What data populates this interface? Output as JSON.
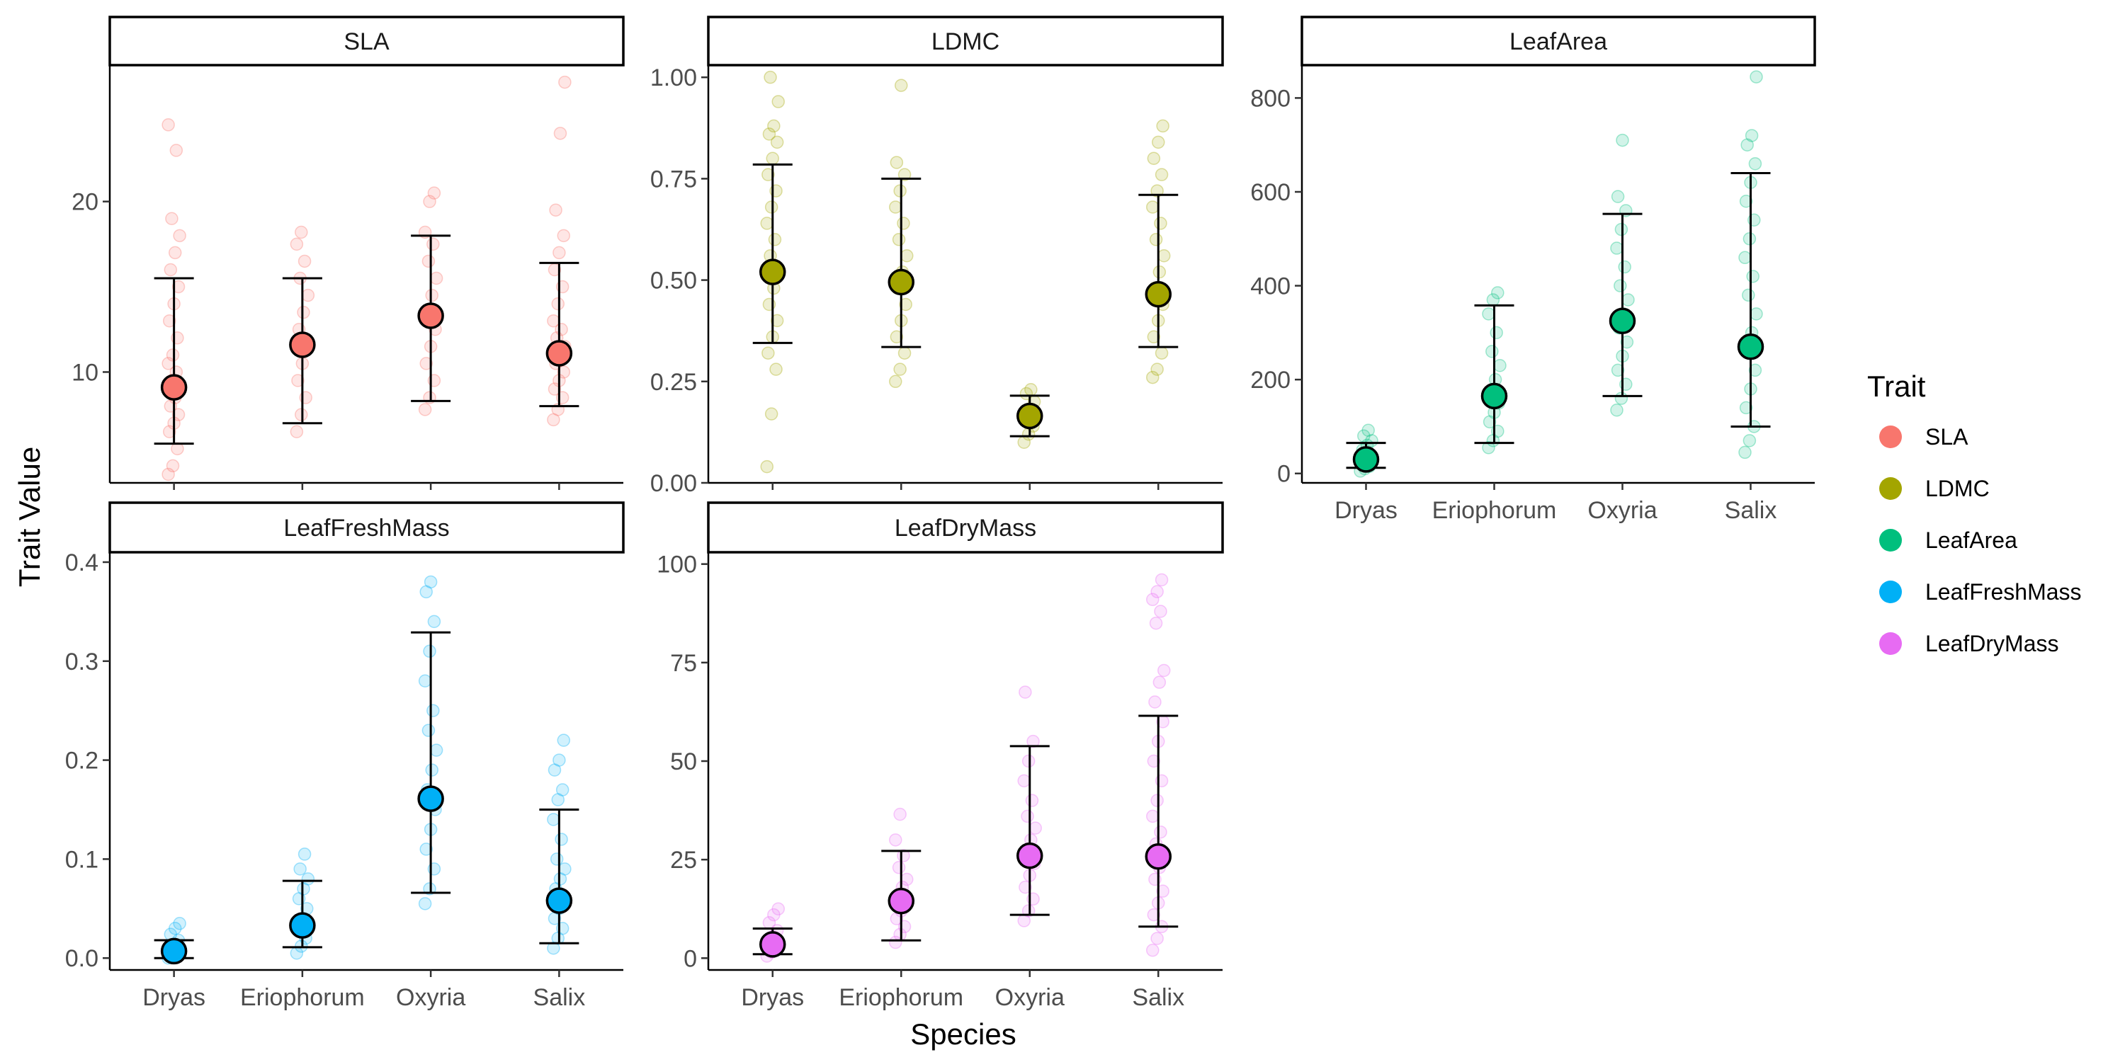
{
  "chart_data": {
    "type": "scatter",
    "xlabel": "Species",
    "ylabel": "Trait Value",
    "categories": [
      "Dryas",
      "Eriophorum",
      "Oxyria",
      "Salix"
    ],
    "grid": false,
    "legend": {
      "title": "Trait",
      "placement": "right",
      "entries": [
        {
          "name": "SLA",
          "color": "#F8766D"
        },
        {
          "name": "LDMC",
          "color": "#A3A500"
        },
        {
          "name": "LeafArea",
          "color": "#00BF7D"
        },
        {
          "name": "LeafFreshMass",
          "color": "#00B0F6"
        },
        {
          "name": "LeafDryMass",
          "color": "#E76BF3"
        }
      ]
    },
    "panels": [
      {
        "name": "SLA",
        "color": "#F8766D",
        "ylim": [
          3.5,
          28
        ],
        "yticks": [
          10,
          20
        ],
        "ytick_labels": [
          "10",
          "20"
        ],
        "mean": [
          9.1,
          11.6,
          13.3,
          11.1
        ],
        "lower": [
          5.8,
          7.0,
          8.3,
          8.0
        ],
        "upper": [
          15.5,
          15.5,
          18.0,
          16.4
        ],
        "points": [
          [
            4.0,
            4.5,
            5.5,
            6.5,
            7.0,
            7.5,
            8.0,
            8.5,
            9.0,
            9.5,
            10.0,
            10.5,
            11.0,
            12.0,
            13.0,
            14.0,
            15.0,
            16.0,
            17.0,
            18.0,
            19.0,
            23.0,
            24.5
          ],
          [
            6.5,
            7.5,
            8.5,
            9.5,
            10.5,
            11.5,
            12.5,
            13.5,
            14.5,
            15.5,
            16.5,
            17.5,
            18.2
          ],
          [
            7.8,
            8.5,
            9.5,
            10.5,
            11.5,
            12.5,
            13.5,
            14.5,
            15.5,
            16.5,
            17.5,
            18.2,
            20.0,
            20.5
          ],
          [
            7.2,
            7.8,
            8.5,
            9.0,
            9.5,
            10.0,
            10.5,
            11.0,
            11.5,
            12.0,
            12.5,
            13.0,
            14.0,
            15.0,
            16.0,
            17.0,
            18.0,
            19.5,
            24.0,
            27.0
          ]
        ]
      },
      {
        "name": "LDMC",
        "color": "#A3A500",
        "ylim": [
          0,
          1.03
        ],
        "yticks": [
          0,
          0.25,
          0.5,
          0.75,
          1.0
        ],
        "ytick_labels": [
          "0.00",
          "0.25",
          "0.50",
          "0.75",
          "1.00"
        ],
        "mean": [
          0.52,
          0.495,
          0.165,
          0.465
        ],
        "lower": [
          0.345,
          0.335,
          0.115,
          0.335
        ],
        "upper": [
          0.785,
          0.75,
          0.215,
          0.71
        ],
        "points": [
          [
            0.04,
            0.17,
            0.28,
            0.32,
            0.36,
            0.4,
            0.44,
            0.48,
            0.52,
            0.56,
            0.6,
            0.64,
            0.68,
            0.72,
            0.76,
            0.8,
            0.84,
            0.86,
            0.88,
            0.94,
            1.0
          ],
          [
            0.25,
            0.28,
            0.32,
            0.36,
            0.4,
            0.44,
            0.48,
            0.52,
            0.56,
            0.6,
            0.64,
            0.68,
            0.72,
            0.76,
            0.79,
            0.98
          ],
          [
            0.1,
            0.12,
            0.14,
            0.16,
            0.18,
            0.2,
            0.22,
            0.23
          ],
          [
            0.26,
            0.28,
            0.32,
            0.36,
            0.4,
            0.44,
            0.48,
            0.52,
            0.56,
            0.6,
            0.64,
            0.68,
            0.72,
            0.76,
            0.8,
            0.84,
            0.88
          ]
        ]
      },
      {
        "name": "LeafArea",
        "color": "#00BF7D",
        "ylim": [
          -20,
          870
        ],
        "yticks": [
          0,
          200,
          400,
          600,
          800
        ],
        "ytick_labels": [
          "0",
          "200",
          "400",
          "600",
          "800"
        ],
        "mean": [
          30,
          165,
          325,
          270
        ],
        "lower": [
          12,
          65,
          165,
          100
        ],
        "upper": [
          65,
          358,
          553,
          640
        ],
        "points": [
          [
            5,
            10,
            15,
            20,
            30,
            40,
            50,
            60,
            70,
            80,
            92
          ],
          [
            55,
            70,
            90,
            110,
            130,
            150,
            170,
            200,
            230,
            260,
            300,
            340,
            370,
            385
          ],
          [
            135,
            160,
            190,
            220,
            250,
            280,
            310,
            340,
            370,
            400,
            440,
            480,
            520,
            560,
            590,
            710
          ],
          [
            45,
            70,
            100,
            140,
            180,
            220,
            260,
            300,
            340,
            380,
            420,
            460,
            500,
            540,
            580,
            620,
            660,
            700,
            720,
            845
          ]
        ]
      },
      {
        "name": "LeafFreshMass",
        "color": "#00B0F6",
        "ylim": [
          -0.012,
          0.41
        ],
        "yticks": [
          0,
          0.1,
          0.2,
          0.3,
          0.4
        ],
        "ytick_labels": [
          "0.0",
          "0.1",
          "0.2",
          "0.3",
          "0.4"
        ],
        "mean": [
          0.007,
          0.033,
          0.161,
          0.058
        ],
        "lower": [
          0.0,
          0.011,
          0.066,
          0.015
        ],
        "upper": [
          0.018,
          0.078,
          0.329,
          0.15
        ],
        "points": [
          [
            0.0,
            0.003,
            0.006,
            0.01,
            0.014,
            0.018,
            0.024,
            0.03,
            0.035
          ],
          [
            0.005,
            0.012,
            0.02,
            0.03,
            0.04,
            0.05,
            0.06,
            0.07,
            0.08,
            0.09,
            0.105
          ],
          [
            0.055,
            0.07,
            0.09,
            0.11,
            0.13,
            0.15,
            0.17,
            0.19,
            0.21,
            0.23,
            0.25,
            0.28,
            0.31,
            0.34,
            0.37,
            0.38
          ],
          [
            0.01,
            0.02,
            0.03,
            0.04,
            0.05,
            0.06,
            0.07,
            0.08,
            0.09,
            0.1,
            0.12,
            0.14,
            0.16,
            0.17,
            0.19,
            0.2,
            0.22
          ]
        ]
      },
      {
        "name": "LeafDryMass",
        "color": "#E76BF3",
        "ylim": [
          -3,
          103
        ],
        "yticks": [
          0,
          25,
          50,
          75,
          100
        ],
        "ytick_labels": [
          "0",
          "25",
          "50",
          "75",
          "100"
        ],
        "mean": [
          3.5,
          14.5,
          26.0,
          25.8
        ],
        "lower": [
          1.0,
          4.5,
          11.0,
          8.0
        ],
        "upper": [
          7.5,
          27.2,
          53.8,
          61.5
        ],
        "points": [
          [
            0.5,
            1.5,
            2.5,
            4.0,
            5.5,
            7.0,
            9.0,
            11.0,
            12.5
          ],
          [
            4.0,
            6.0,
            8.0,
            10.0,
            12.0,
            14.0,
            16.0,
            18.0,
            20.0,
            23.0,
            26.0,
            30.0,
            36.5
          ],
          [
            9.5,
            12.0,
            15.0,
            18.0,
            21.0,
            24.0,
            27.0,
            30.0,
            33.0,
            36.0,
            40.0,
            45.0,
            50.0,
            55.0,
            67.5
          ],
          [
            2.0,
            5.0,
            8.0,
            11.0,
            14.0,
            17.0,
            20.0,
            23.0,
            26.0,
            29.0,
            32.0,
            36.0,
            40.0,
            45.0,
            50.0,
            55.0,
            60.0,
            65.0,
            70.0,
            73.0,
            85.0,
            88.0,
            91.0,
            93.0,
            96.0
          ]
        ]
      }
    ]
  }
}
